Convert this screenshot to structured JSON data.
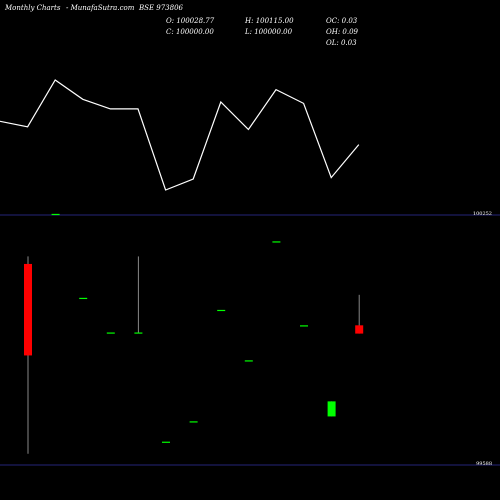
{
  "header": {
    "brand": "Monthly Charts",
    "site": "- MunafaSutra.com",
    "symbol": "BSE 973806"
  },
  "ohlc": {
    "open": "O: 100028.77",
    "close": "C: 100000.00",
    "high": "H: 100115.00",
    "low": "L: 100000.00",
    "oc": "OC: 0.03",
    "oh": "OH: 0.09",
    "ol": "OL: 0.03"
  },
  "chart_data": {
    "type": "candlestick",
    "title": "",
    "y_axis_labels": [
      "100252",
      "99588"
    ],
    "ylim": [
      99588,
      100252
    ],
    "line_series": {
      "name": "",
      "values": [
        100800,
        100760,
        101100,
        100960,
        100890,
        100890,
        100300,
        100380,
        100940,
        100740,
        101030,
        100930,
        100390,
        100630
      ]
    },
    "candles": [
      {
        "open": 100122,
        "high": 100142,
        "low": 99618,
        "close": 99879,
        "color": "red"
      },
      {
        "open": 100255,
        "high": 100255,
        "low": 100255,
        "close": 100255,
        "color": "green"
      },
      {
        "open": 100032,
        "high": 100032,
        "low": 100032,
        "close": 100032,
        "color": "green"
      },
      {
        "open": 99940,
        "high": 99940,
        "low": 99940,
        "close": 99940,
        "color": "green"
      },
      {
        "open": 99940,
        "high": 100142,
        "low": 99940,
        "close": 99940,
        "color": "green"
      },
      {
        "open": 99650,
        "high": 99650,
        "low": 99650,
        "close": 99650,
        "color": "green"
      },
      {
        "open": 99704,
        "high": 99704,
        "low": 99704,
        "close": 99704,
        "color": "green"
      },
      {
        "open": 100000,
        "high": 100000,
        "low": 100000,
        "close": 100000,
        "color": "green"
      },
      {
        "open": 99866,
        "high": 99866,
        "low": 99866,
        "close": 99866,
        "color": "green"
      },
      {
        "open": 100182,
        "high": 100182,
        "low": 100182,
        "close": 100182,
        "color": "green"
      },
      {
        "open": 99959,
        "high": 99959,
        "low": 99959,
        "close": 99959,
        "color": "green"
      },
      {
        "open": 99717,
        "high": 99757,
        "low": 99717,
        "close": 99757,
        "color": "green"
      },
      {
        "open": 99959,
        "high": 100040,
        "low": 99937,
        "close": 99937,
        "color": "red"
      }
    ],
    "colors": {
      "up": "#00ff00",
      "down": "#ff0000",
      "line": "#ffffff",
      "grid": "#3030a0",
      "wick": "#888888"
    }
  }
}
